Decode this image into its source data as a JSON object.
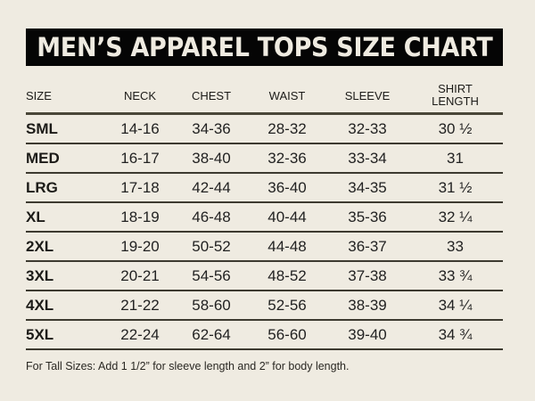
{
  "title": "MEN’S APPAREL TOPS SIZE CHART",
  "table": {
    "headers": [
      "SIZE",
      "NECK",
      "CHEST",
      "WAIST",
      "SLEEVE",
      "SHIRT\nLENGTH"
    ],
    "header_shirt_line1": "SHIRT",
    "header_shirt_line2": "LENGTH",
    "rows": [
      [
        "SML",
        "14-16",
        "34-36",
        "28-32",
        "32-33",
        "30 ½"
      ],
      [
        "MED",
        "16-17",
        "38-40",
        "32-36",
        "33-34",
        "31"
      ],
      [
        "LRG",
        "17-18",
        "42-44",
        "36-40",
        "34-35",
        "31 ½"
      ],
      [
        "XL",
        "18-19",
        "46-48",
        "40-44",
        "35-36",
        "32 ¼"
      ],
      [
        "2XL",
        "19-20",
        "50-52",
        "44-48",
        "36-37",
        "33"
      ],
      [
        "3XL",
        "20-21",
        "54-56",
        "48-52",
        "37-38",
        "33 ¾"
      ],
      [
        "4XL",
        "21-22",
        "58-60",
        "52-56",
        "38-39",
        "34 ¼"
      ],
      [
        "5XL",
        "22-24",
        "62-64",
        "56-60",
        "39-40",
        "34 ¾"
      ]
    ]
  },
  "footnote": "For Tall Sizes: Add 1  1/2” for sleeve length and 2” for body length.",
  "colors": {
    "background": "#efebe1",
    "title_bar": "#050505",
    "title_text": "#efebe1",
    "rule": "#3d3a30"
  }
}
